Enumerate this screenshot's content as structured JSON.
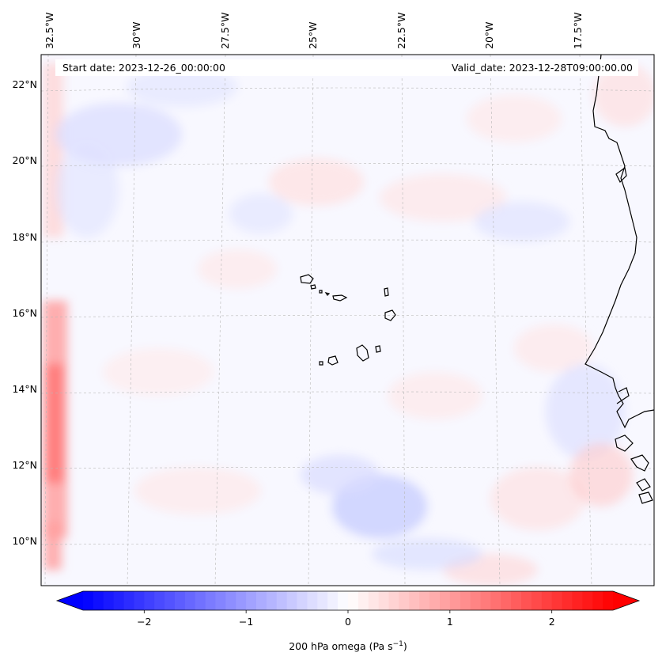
{
  "map": {
    "start_date": "Start date: 2023-12-26_00:00:00",
    "valid_date": "Valid_date: 2023-12-28T09:00:00.00",
    "lon_labels": [
      "32.5°W",
      "30°W",
      "27.5°W",
      "25°W",
      "22.5°W",
      "20°W",
      "17.5°W"
    ],
    "lat_labels": [
      "22°N",
      "20°N",
      "18°N",
      "16°N",
      "14°N",
      "12°N",
      "10°N"
    ],
    "gridlines": "on"
  },
  "colorbar": {
    "label": "200 hPa omega (Pa s",
    "label_sup": "−1",
    "label_close": ")",
    "ticks": [
      "−2",
      "−1",
      "0",
      "1",
      "2"
    ],
    "tick_values": [
      -2,
      -1,
      0,
      1,
      2
    ],
    "range": [
      -2.6,
      2.6
    ],
    "colormap": "bwr",
    "colors": {
      "min": "#0000ff",
      "mid": "#ffffff",
      "max": "#ff0000"
    }
  }
}
